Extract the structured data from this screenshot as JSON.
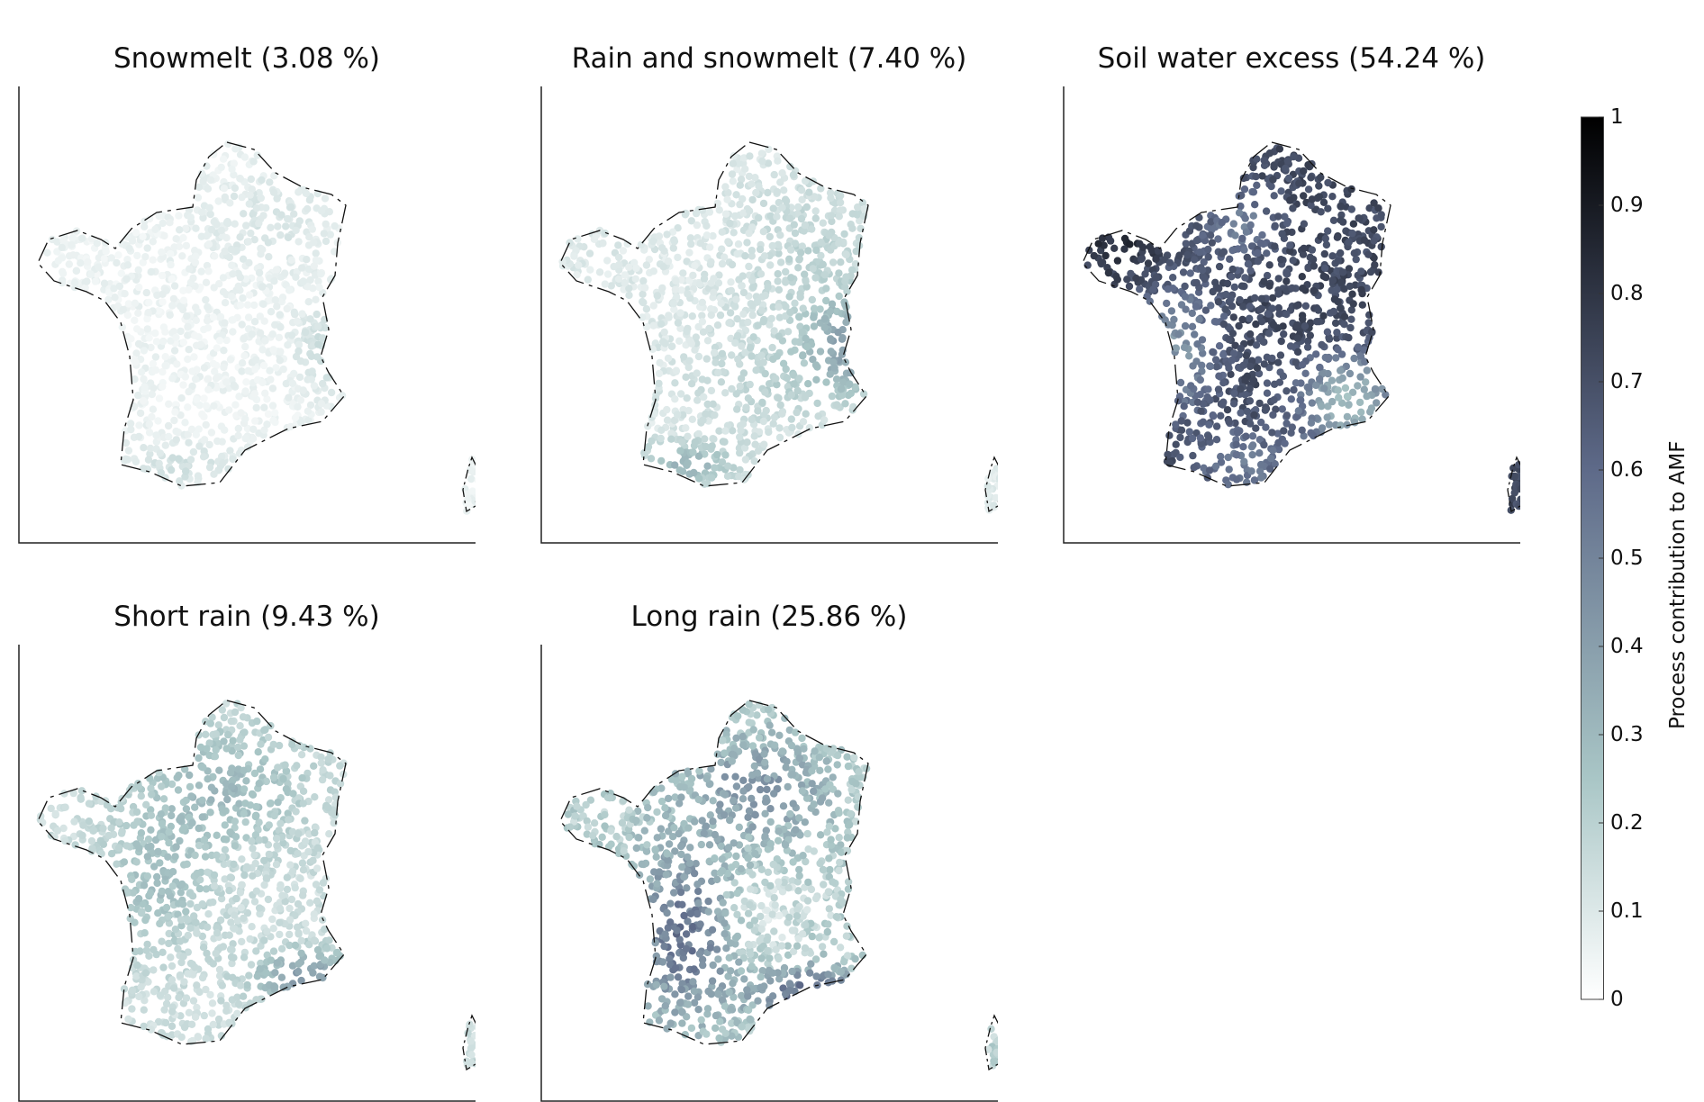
{
  "panels": [
    {
      "id": "snowmelt",
      "title": "Snowmelt (3.08 %)",
      "pattern": "snowmelt"
    },
    {
      "id": "rain-snowmelt",
      "title": "Rain and snowmelt (7.40 %)",
      "pattern": "rainsnow"
    },
    {
      "id": "soil-water-excess",
      "title": "Soil water excess (54.24 %)",
      "pattern": "soil"
    },
    {
      "id": "short-rain",
      "title": "Short rain (9.43 %)",
      "pattern": "shortrain"
    },
    {
      "id": "long-rain",
      "title": "Long rain (25.86 %)",
      "pattern": "longrain"
    }
  ],
  "colorbar": {
    "label": "Process contribution to AMF",
    "ticks": [
      "0",
      "0.1",
      "0.2",
      "0.3",
      "0.4",
      "0.5",
      "0.6",
      "0.7",
      "0.8",
      "0.9",
      "1"
    ],
    "min": 0,
    "max": 1,
    "colors": [
      "#ffffff",
      "#a9c6c6",
      "#5e6a89",
      "#000000"
    ]
  }
}
